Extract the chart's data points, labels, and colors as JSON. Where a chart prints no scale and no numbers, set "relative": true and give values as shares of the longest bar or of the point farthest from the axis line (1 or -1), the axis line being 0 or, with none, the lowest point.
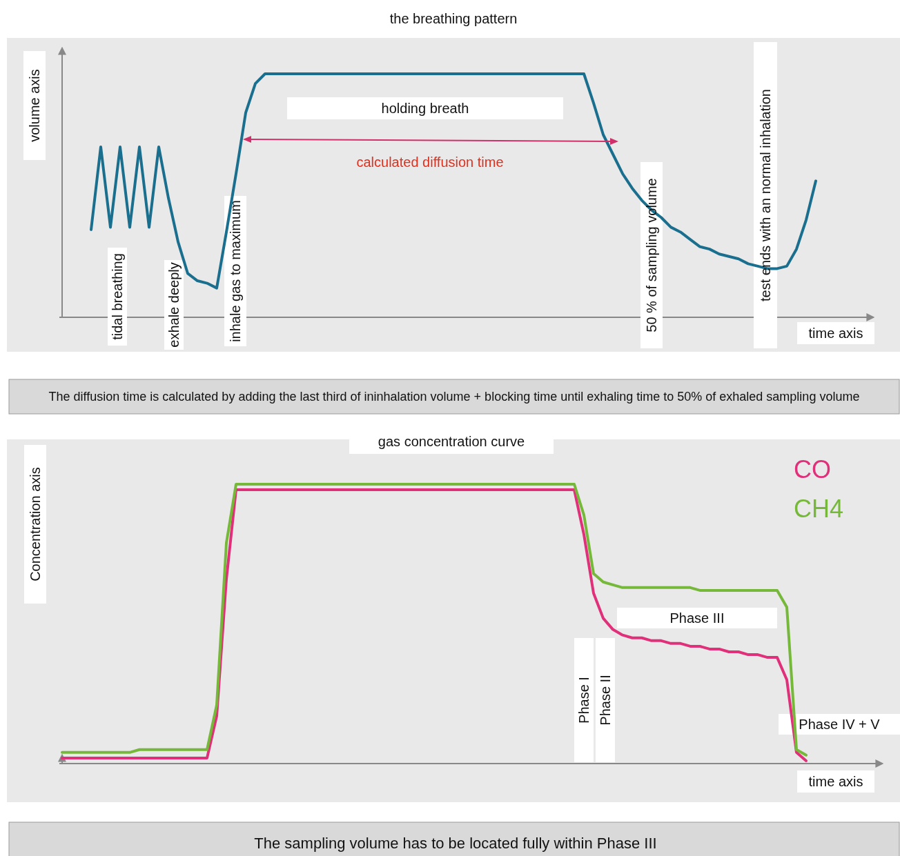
{
  "chart_data": [
    {
      "type": "line",
      "title": "the breathing pattern",
      "xlabel": "time axis",
      "ylabel": "volume axis",
      "relative": true,
      "categories": [
        null,
        null,
        null,
        null,
        null,
        null,
        null,
        null,
        null,
        null,
        null,
        null,
        null,
        null,
        null,
        null,
        null,
        null,
        null,
        null,
        null,
        null,
        null,
        null,
        null,
        null,
        null,
        null,
        null,
        null,
        null,
        null,
        null,
        null,
        null,
        null,
        null,
        null,
        null,
        null,
        null,
        null,
        null,
        null,
        null,
        null,
        null,
        null,
        null,
        null,
        null,
        null,
        null,
        null,
        null,
        null,
        null,
        null,
        null,
        null,
        null,
        null,
        null,
        null,
        null,
        null,
        null,
        null,
        null,
        null,
        null,
        null,
        null,
        null,
        null,
        null,
        null,
        null,
        null,
        null,
        null,
        null,
        null,
        null
      ],
      "series": [
        {
          "color": "#1a6f8e",
          "values": [
            null,
            null,
            null,
            0.36,
            0.7,
            0.37,
            0.7,
            0.37,
            0.7,
            0.37,
            0.7,
            0.49,
            0.31,
            0.18,
            0.15,
            0.14,
            0.12,
            0.35,
            0.59,
            0.84,
            0.96,
            1,
            1,
            1,
            1,
            1,
            1,
            1,
            1,
            1,
            1,
            1,
            1,
            1,
            1,
            1,
            1,
            1,
            1,
            1,
            1,
            1,
            1,
            1,
            1,
            1,
            1,
            1,
            1,
            1,
            1,
            1,
            1,
            1,
            1,
            0.88,
            0.75,
            0.67,
            0.59,
            0.53,
            0.48,
            0.44,
            0.41,
            0.37,
            0.35,
            0.32,
            0.29,
            0.28,
            0.26,
            0.25,
            0.24,
            0.22,
            0.21,
            0.2,
            0.2,
            0.21,
            0.28,
            0.4,
            0.56,
            null,
            null,
            null,
            null,
            null
          ]
        }
      ],
      "annotations": [
        "tidal breathing",
        "exhale deeply",
        "inhale gas to maximum",
        "holding breath",
        "calculated diffusion time",
        "50 % of sampling volume",
        "test ends with an normal inhalation",
        "The diffusion time is calculated by adding the last third of ininhalation volume + blocking time until exhaling time to 50% of exhaled sampling volume"
      ]
    },
    {
      "type": "line",
      "title": "gas concentration curve",
      "xlabel": "time axis",
      "ylabel": "Concentration axis",
      "relative": true,
      "legend": "top right",
      "categories": [
        null,
        null,
        null,
        null,
        null,
        null,
        null,
        null,
        null,
        null,
        null,
        null,
        null,
        null,
        null,
        null,
        null,
        null,
        null,
        null,
        null,
        null,
        null,
        null,
        null,
        null,
        null,
        null,
        null,
        null,
        null,
        null,
        null,
        null,
        null,
        null,
        null,
        null,
        null,
        null,
        null,
        null,
        null,
        null,
        null,
        null,
        null,
        null,
        null,
        null,
        null,
        null,
        null,
        null,
        null,
        null,
        null,
        null,
        null,
        null,
        null,
        null,
        null,
        null,
        null,
        null,
        null,
        null,
        null,
        null,
        null,
        null,
        null,
        null,
        null,
        null,
        null,
        null,
        null,
        null,
        null,
        null,
        null,
        null
      ],
      "series": [
        {
          "name": "CO",
          "color": "#e0307a",
          "values": [
            0.02,
            0.02,
            0.02,
            0.02,
            0.02,
            0.02,
            0.02,
            0.02,
            0.02,
            0.02,
            0.02,
            0.02,
            0.02,
            0.02,
            0.02,
            0.02,
            0.17,
            0.66,
            0.98,
            0.98,
            0.98,
            0.98,
            0.98,
            0.98,
            0.98,
            0.98,
            0.98,
            0.98,
            0.98,
            0.98,
            0.98,
            0.98,
            0.98,
            0.98,
            0.98,
            0.98,
            0.98,
            0.98,
            0.98,
            0.98,
            0.98,
            0.98,
            0.98,
            0.98,
            0.98,
            0.98,
            0.98,
            0.98,
            0.98,
            0.98,
            0.98,
            0.98,
            0.98,
            0.98,
            0.82,
            0.61,
            0.52,
            0.48,
            0.46,
            0.45,
            0.45,
            0.44,
            0.44,
            0.43,
            0.43,
            0.42,
            0.42,
            0.41,
            0.41,
            0.4,
            0.4,
            0.39,
            0.39,
            0.38,
            0.38,
            0.3,
            0.04,
            0.01,
            null,
            null,
            null,
            null,
            null,
            null
          ]
        },
        {
          "name": "CH4",
          "color": "#76b83a",
          "values": [
            0.04,
            0.04,
            0.04,
            0.04,
            0.04,
            0.04,
            0.04,
            0.04,
            0.05,
            0.05,
            0.05,
            0.05,
            0.05,
            0.05,
            0.05,
            0.05,
            0.21,
            0.79,
            1,
            1,
            1,
            1,
            1,
            1,
            1,
            1,
            1,
            1,
            1,
            1,
            1,
            1,
            1,
            1,
            1,
            1,
            1,
            1,
            1,
            1,
            1,
            1,
            1,
            1,
            1,
            1,
            1,
            1,
            1,
            1,
            1,
            1,
            1,
            1,
            0.89,
            0.68,
            0.65,
            0.64,
            0.63,
            0.63,
            0.63,
            0.63,
            0.63,
            0.63,
            0.63,
            0.63,
            0.62,
            0.62,
            0.62,
            0.62,
            0.62,
            0.62,
            0.62,
            0.62,
            0.62,
            0.56,
            0.05,
            0.03,
            null,
            null,
            null,
            null,
            null,
            null
          ]
        }
      ],
      "annotations": [
        "Phase I",
        "Phase II",
        "Phase III",
        "Phase IV + V",
        "The sampling volume has to be located fully within Phase III"
      ]
    }
  ]
}
